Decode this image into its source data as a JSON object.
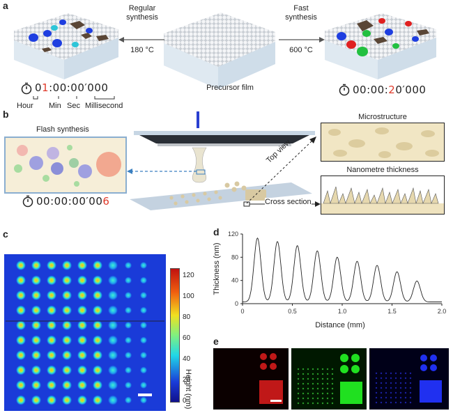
{
  "panel_labels": {
    "a": "a",
    "b": "b",
    "c": "c",
    "d": "d",
    "e": "e"
  },
  "panel_a": {
    "regular": {
      "line1": "Regular",
      "line2": "synthesis",
      "temp": "180 °C"
    },
    "fast": {
      "line1": "Fast",
      "line2": "synthesis",
      "temp": "600 °C"
    },
    "precursor_label": "Precursor film",
    "timer_left": {
      "pre": "0",
      "highlight": "1",
      "post": ":00:00′000"
    },
    "timer_right": {
      "pre": "00:00:",
      "highlight": "2",
      "post": "0′000"
    },
    "units": {
      "hour": "Hour",
      "min": "Min",
      "sec": "Sec",
      "ms": "Millisecond"
    }
  },
  "panel_b": {
    "flash_title": "Flash synthesis",
    "timer": {
      "pre": "00:00:00′00",
      "highlight": "6"
    },
    "microstructure": "Microstructure",
    "nanometre": "Nanometre thickness",
    "top_view": "Top view",
    "cross_section": "Cross section"
  },
  "panel_c": {
    "colorbar_label": "Height (nm)",
    "colorbar_ticks": [
      "120",
      "100",
      "80",
      "60",
      "40",
      "20",
      "0"
    ]
  },
  "colors": {
    "highlight": "#e03a2a",
    "arrow_blue": "#3a7fc0",
    "heatmap_bg": "#1a3bd8"
  },
  "chart_data": {
    "type": "line",
    "xlabel": "Distance (mm)",
    "ylabel": "Thickness (nm)",
    "xlim": [
      0,
      2.0
    ],
    "ylim": [
      0,
      120
    ],
    "xticks": [
      "0",
      "0.5",
      "1.0",
      "1.5",
      "2.0"
    ],
    "yticks": [
      "0",
      "40",
      "80",
      "120"
    ],
    "series": [
      {
        "peaks_x": [
          0.15,
          0.35,
          0.55,
          0.75,
          0.95,
          1.15,
          1.35,
          1.55,
          1.75
        ],
        "peaks_y": [
          110,
          104,
          97,
          88,
          77,
          70,
          63,
          52,
          36
        ],
        "baseline": 3
      }
    ]
  }
}
